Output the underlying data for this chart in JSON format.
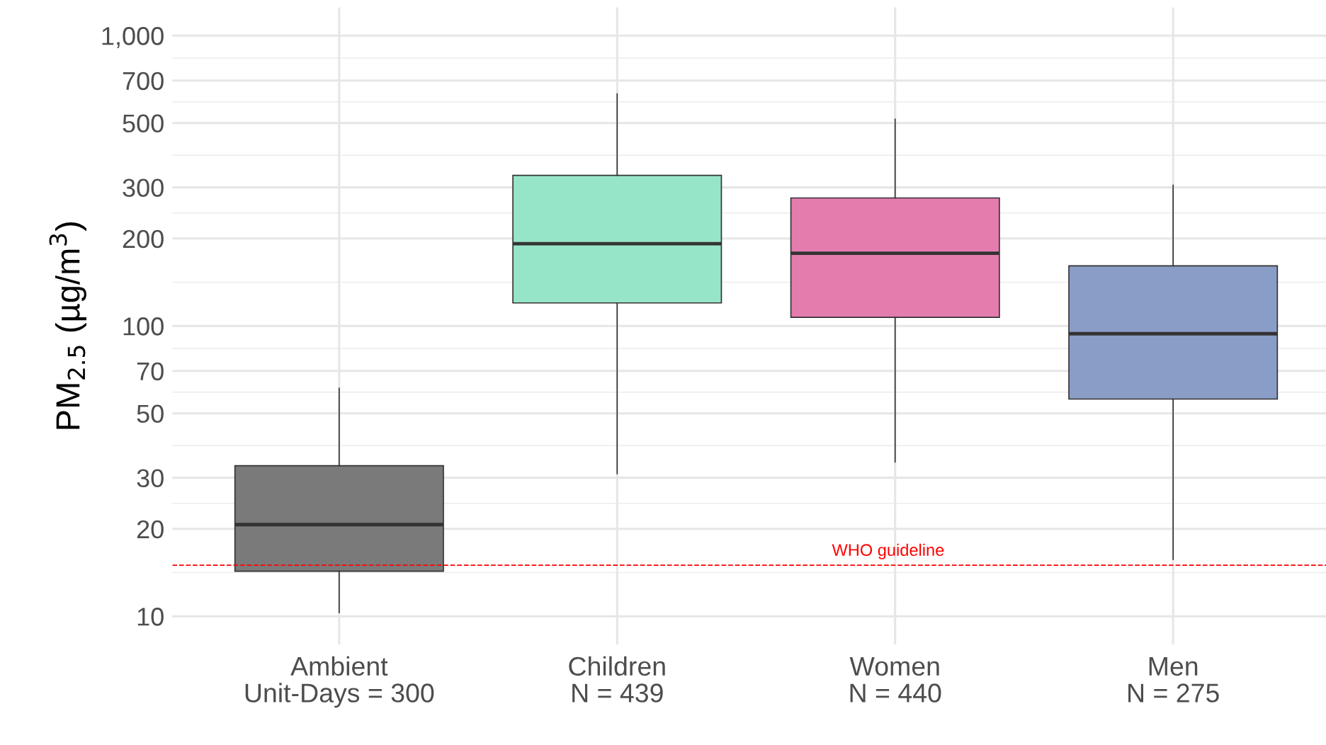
{
  "chart_data": {
    "type": "box",
    "ylabel": "PM$_{2.5}$ (µg/m$^{3}$)",
    "categories": [
      "Ambient\nUnit-Days = 300",
      "Children\nN = 439",
      "Women\nN = 440",
      "Men\nN = 275"
    ],
    "colors": [
      "#7a7a7a",
      "#97e5c9",
      "#e57cae",
      "#8a9dc6"
    ],
    "boxes": [
      {
        "low": 10.3,
        "q1": 14.3,
        "median": 20.7,
        "q3": 33,
        "high": 61
      },
      {
        "low": 31,
        "q1": 120,
        "median": 192,
        "q3": 330,
        "high": 630
      },
      {
        "low": 34,
        "q1": 107,
        "median": 178,
        "q3": 276,
        "high": 515
      },
      {
        "low": 15.7,
        "q1": 56,
        "median": 94,
        "q3": 161,
        "high": 305
      }
    ],
    "log": "y",
    "ylim": [
      8,
      1250
    ],
    "yticks": [
      10,
      20,
      30,
      50,
      70,
      100,
      200,
      300,
      500,
      700,
      {
        "value": 1000,
        "label": "1,000"
      }
    ],
    "grid": true,
    "ref_lines": [
      {
        "axis": "y",
        "value": 15,
        "label": "WHO guideline",
        "color": "#ff0000",
        "line_style": "dashed"
      }
    ]
  }
}
